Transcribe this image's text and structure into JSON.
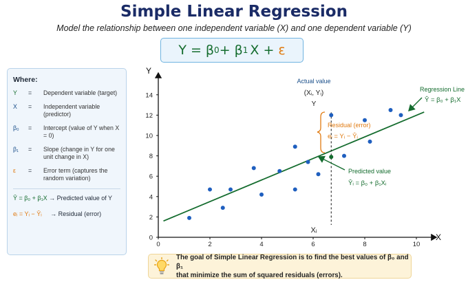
{
  "title": "Simple Linear Regression",
  "subtitle": "Model the relationship between one independent variable (X) and one dependent variable (Y)",
  "main_equation": {
    "lhs": "Y = β",
    "b0_sub": "0",
    "mid": " + β",
    "b1_sub": "1",
    "rhs": "X +",
    "epsilon": "ε"
  },
  "legend": {
    "heading": "Where:",
    "items": [
      {
        "symbol": "Y",
        "equals": "=",
        "desc": "Dependent variable (target)"
      },
      {
        "symbol": "X",
        "equals": "=",
        "desc": "Independent variable (predictor)"
      },
      {
        "symbol": "β₀",
        "equals": "=",
        "desc": "Intercept (value of Y when X = 0)"
      },
      {
        "symbol": "β₁",
        "equals": "=",
        "desc": "Slope (change in Y for one unit change in X)"
      },
      {
        "symbol": "ε",
        "equals": "=",
        "desc": "Error term (captures the random variation)"
      }
    ],
    "formula_pred": "Ŷ = β₀ + β₁X",
    "formula_pred_desc": "→  Predicted value of Y",
    "formula_resid": "eᵢ = Yᵢ − Ŷᵢ",
    "formula_resid_desc": "→  Residual (error)"
  },
  "colors": {
    "green": "#146c2e",
    "blue": "#1a4f8a",
    "orange": "#e07a10",
    "point": "#1f5fbf"
  },
  "chart_data": {
    "type": "scatter",
    "xlabel": "X",
    "ylabel": "Y",
    "xlim": [
      0,
      10.5
    ],
    "ylim": [
      0,
      14.5
    ],
    "xticks": [
      0,
      2,
      4,
      6,
      8,
      10
    ],
    "yticks": [
      0,
      2,
      4,
      6,
      8,
      10,
      12,
      14
    ],
    "points": [
      {
        "x": 1.2,
        "y": 1.9
      },
      {
        "x": 2.0,
        "y": 4.7
      },
      {
        "x": 2.5,
        "y": 2.9
      },
      {
        "x": 2.8,
        "y": 4.7
      },
      {
        "x": 3.7,
        "y": 6.8
      },
      {
        "x": 4.0,
        "y": 4.2
      },
      {
        "x": 4.7,
        "y": 6.5
      },
      {
        "x": 5.3,
        "y": 8.9
      },
      {
        "x": 5.3,
        "y": 4.7
      },
      {
        "x": 5.8,
        "y": 7.4
      },
      {
        "x": 6.2,
        "y": 6.2
      },
      {
        "x": 6.7,
        "y": 12.0
      },
      {
        "x": 7.2,
        "y": 8.0
      },
      {
        "x": 8.0,
        "y": 11.5
      },
      {
        "x": 8.2,
        "y": 9.4
      },
      {
        "x": 9.0,
        "y": 12.5
      },
      {
        "x": 9.4,
        "y": 12.0
      }
    ],
    "regression_line": {
      "x1": 0.2,
      "y1": 1.6,
      "x2": 10.3,
      "y2": 12.3
    },
    "highlight": {
      "x": 6.7,
      "y_actual": 12.0,
      "y_pred": 7.9
    },
    "annotations": {
      "actual_title": "Actual value",
      "actual_coord": "(Xᵢ, Yᵢ)",
      "actual_y": "Y",
      "xi": "Xᵢ",
      "residual_title": "Residual (error)",
      "residual_formula": "eᵢ = Yᵢ − Ŷᵢ",
      "predicted_title": "Predicted value",
      "predicted_formula": "Ŷᵢ = β₀ + β₁Xᵢ",
      "line_title": "Regression Line",
      "line_formula": "Ŷ = β₀ + β₁X"
    }
  },
  "note": {
    "line1": "The goal of Simple Linear Regression is to find the best values of β₀ and β₁",
    "line2": "that minimize the sum of squared residuals (errors)."
  }
}
